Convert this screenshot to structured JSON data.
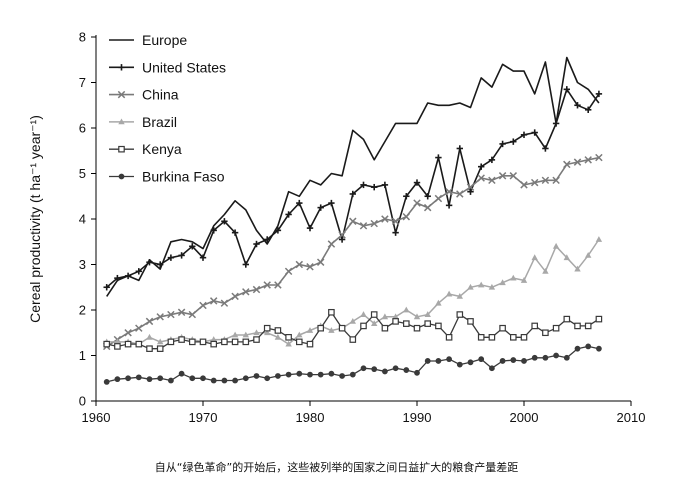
{
  "caption": "自从“绿色革命”的开始后，这些被列举的国家之间日益扩大的粮食产量差距",
  "chart_data": {
    "type": "line",
    "title": "",
    "xlabel": "",
    "ylabel": "Cereal productivity (t ha⁻¹ year⁻¹)",
    "xlim": [
      1960,
      2010
    ],
    "ylim": [
      0,
      8
    ],
    "xticks": [
      1960,
      1970,
      1980,
      1990,
      2000,
      2010
    ],
    "yticks": [
      0,
      1,
      2,
      3,
      4,
      5,
      6,
      7,
      8
    ],
    "grid": false,
    "legend_position": "top-left",
    "x": [
      1961,
      1962,
      1963,
      1964,
      1965,
      1966,
      1967,
      1968,
      1969,
      1970,
      1971,
      1972,
      1973,
      1974,
      1975,
      1976,
      1977,
      1978,
      1979,
      1980,
      1981,
      1982,
      1983,
      1984,
      1985,
      1986,
      1987,
      1988,
      1989,
      1990,
      1991,
      1992,
      1993,
      1994,
      1995,
      1996,
      1997,
      1998,
      1999,
      2000,
      2001,
      2002,
      2003,
      2004,
      2005,
      2006,
      2007
    ],
    "series": [
      {
        "name": "Europe",
        "color": "#1a1a1a",
        "marker": "none",
        "width": 1.6,
        "values": [
          2.3,
          2.65,
          2.75,
          2.65,
          3.1,
          2.9,
          3.5,
          3.55,
          3.5,
          3.35,
          3.85,
          4.1,
          4.4,
          4.2,
          3.75,
          3.45,
          3.85,
          4.6,
          4.5,
          4.85,
          4.75,
          5.0,
          4.95,
          5.95,
          5.75,
          5.3,
          5.7,
          6.1,
          6.1,
          6.1,
          6.55,
          6.5,
          6.5,
          6.55,
          6.45,
          7.1,
          6.9,
          7.4,
          7.25,
          7.25,
          6.75,
          7.45,
          6.1,
          7.55,
          7.0,
          6.85,
          6.55
        ]
      },
      {
        "name": "United States",
        "color": "#1a1a1a",
        "marker": "plus",
        "width": 1.6,
        "values": [
          2.5,
          2.7,
          2.75,
          2.85,
          3.05,
          3.0,
          3.15,
          3.2,
          3.4,
          3.15,
          3.75,
          3.95,
          3.7,
          3.0,
          3.45,
          3.55,
          3.75,
          4.1,
          4.35,
          3.8,
          4.25,
          4.35,
          3.55,
          4.55,
          4.75,
          4.7,
          4.75,
          3.7,
          4.5,
          4.8,
          4.5,
          5.35,
          4.3,
          5.55,
          4.6,
          5.15,
          5.3,
          5.65,
          5.7,
          5.85,
          5.9,
          5.55,
          6.1,
          6.85,
          6.5,
          6.4,
          6.75
        ]
      },
      {
        "name": "China",
        "color": "#7a7a7a",
        "marker": "x",
        "width": 1.6,
        "values": [
          1.2,
          1.35,
          1.5,
          1.6,
          1.75,
          1.85,
          1.9,
          1.95,
          1.9,
          2.1,
          2.2,
          2.15,
          2.3,
          2.4,
          2.45,
          2.55,
          2.55,
          2.85,
          3.0,
          2.95,
          3.05,
          3.45,
          3.65,
          3.95,
          3.85,
          3.9,
          4.0,
          3.95,
          4.05,
          4.35,
          4.25,
          4.45,
          4.6,
          4.55,
          4.7,
          4.9,
          4.85,
          4.95,
          4.95,
          4.75,
          4.8,
          4.85,
          4.85,
          5.2,
          5.25,
          5.3,
          5.35
        ]
      },
      {
        "name": "Brazil",
        "color": "#a8a8a8",
        "marker": "tri",
        "width": 1.5,
        "values": [
          1.3,
          1.3,
          1.3,
          1.25,
          1.4,
          1.3,
          1.35,
          1.4,
          1.35,
          1.3,
          1.35,
          1.35,
          1.45,
          1.45,
          1.5,
          1.5,
          1.4,
          1.25,
          1.45,
          1.55,
          1.65,
          1.55,
          1.6,
          1.75,
          1.9,
          1.7,
          1.85,
          1.85,
          2.0,
          1.85,
          1.9,
          2.15,
          2.35,
          2.3,
          2.5,
          2.55,
          2.5,
          2.6,
          2.7,
          2.65,
          3.15,
          2.85,
          3.4,
          3.15,
          2.9,
          3.2,
          3.55
        ]
      },
      {
        "name": "Kenya",
        "color": "#3a3a3a",
        "marker": "square",
        "width": 1.3,
        "values": [
          1.25,
          1.2,
          1.25,
          1.25,
          1.15,
          1.15,
          1.3,
          1.35,
          1.3,
          1.3,
          1.25,
          1.3,
          1.3,
          1.3,
          1.35,
          1.6,
          1.55,
          1.4,
          1.3,
          1.25,
          1.6,
          1.95,
          1.6,
          1.35,
          1.65,
          1.9,
          1.6,
          1.75,
          1.7,
          1.6,
          1.7,
          1.65,
          1.4,
          1.9,
          1.75,
          1.4,
          1.4,
          1.6,
          1.4,
          1.4,
          1.65,
          1.5,
          1.6,
          1.8,
          1.65,
          1.65,
          1.8
        ]
      },
      {
        "name": "Burkina Faso",
        "color": "#3a3a3a",
        "marker": "circle",
        "width": 1.3,
        "values": [
          0.42,
          0.48,
          0.5,
          0.52,
          0.48,
          0.5,
          0.45,
          0.6,
          0.5,
          0.5,
          0.45,
          0.45,
          0.45,
          0.5,
          0.55,
          0.5,
          0.55,
          0.58,
          0.6,
          0.58,
          0.58,
          0.6,
          0.55,
          0.58,
          0.72,
          0.7,
          0.65,
          0.72,
          0.68,
          0.62,
          0.88,
          0.88,
          0.92,
          0.8,
          0.85,
          0.92,
          0.72,
          0.88,
          0.9,
          0.88,
          0.95,
          0.95,
          1.0,
          0.95,
          1.15,
          1.2,
          1.15
        ]
      }
    ]
  }
}
